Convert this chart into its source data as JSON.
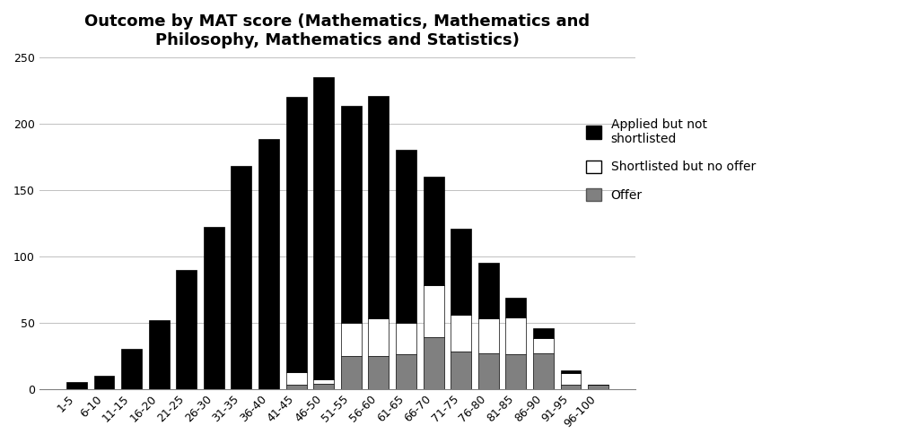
{
  "title": "Outcome by MAT score (Mathematics, Mathematics and\nPhilosophy, Mathematics and Statistics)",
  "categories": [
    "1-5",
    "6-10",
    "11-15",
    "16-20",
    "21-25",
    "26-30",
    "31-35",
    "36-40",
    "41-45",
    "46-50",
    "51-55",
    "56-60",
    "61-65",
    "66-70",
    "71-75",
    "76-80",
    "81-85",
    "86-90",
    "91-95",
    "96-100"
  ],
  "applied_not_shortlisted": [
    5,
    10,
    30,
    52,
    90,
    122,
    168,
    188,
    207,
    228,
    163,
    168,
    130,
    82,
    65,
    42,
    15,
    8,
    2,
    0
  ],
  "shortlisted_no_offer": [
    0,
    0,
    0,
    0,
    0,
    0,
    0,
    0,
    10,
    3,
    25,
    28,
    24,
    39,
    28,
    26,
    28,
    11,
    9,
    0
  ],
  "offer": [
    0,
    0,
    0,
    0,
    0,
    0,
    0,
    0,
    3,
    4,
    25,
    25,
    26,
    39,
    28,
    27,
    26,
    27,
    3,
    3
  ],
  "ylim": [
    0,
    250
  ],
  "yticks": [
    0,
    50,
    100,
    150,
    200,
    250
  ],
  "color_applied": "#000000",
  "color_shortlisted": "#ffffff",
  "color_offer": "#808080",
  "legend_applied": "Applied but not\nshortlisted",
  "legend_shortlisted": "Shortlisted but no offer",
  "legend_offer": "Offer",
  "bar_edge_color": "#000000",
  "bar_width": 0.75,
  "title_fontsize": 13,
  "tick_fontsize": 9,
  "legend_fontsize": 10,
  "figure_width": 10.24,
  "figure_height": 4.94,
  "dpi": 100
}
